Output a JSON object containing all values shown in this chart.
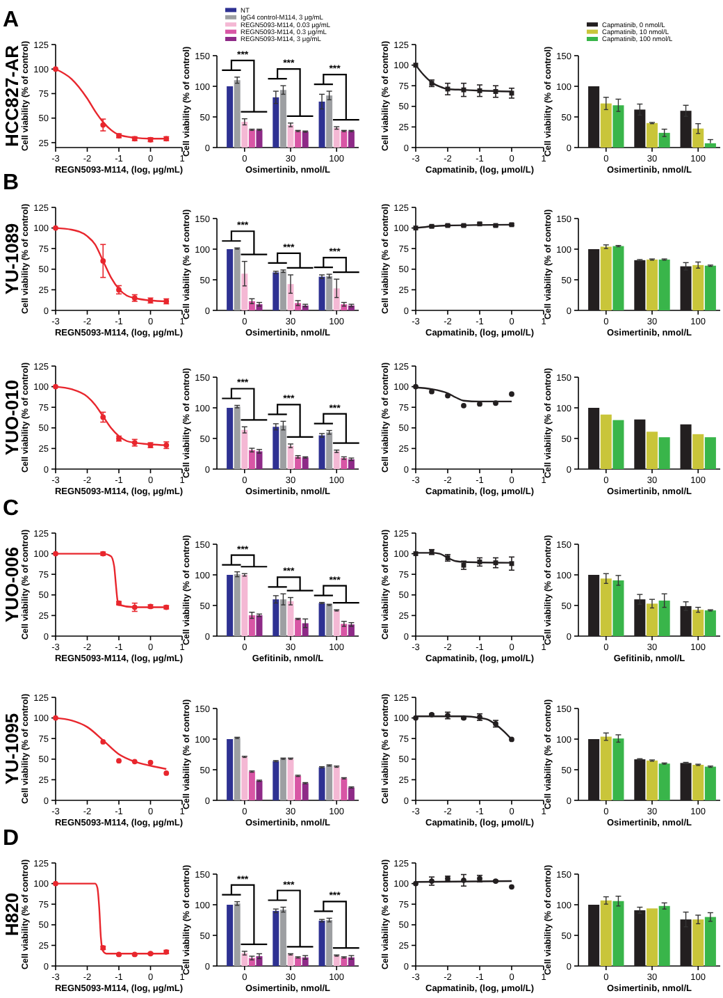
{
  "chart_data": [
    {
      "type": "line",
      "title": "HCC827-AR",
      "annotations": [
        "A"
      ],
      "xlabel": "REGN5093-M114, (log, μg/mL)",
      "ylabel": "Cell viability (% of control)",
      "xlim": [
        -3,
        1
      ],
      "xticks": [
        -3,
        -2,
        -1,
        0,
        1
      ],
      "ylim": [
        20,
        125
      ],
      "yticks": [
        25,
        50,
        75,
        100,
        125
      ],
      "series": [
        {
          "type": "line",
          "color": "#e8262d",
          "marker": "none",
          "x": [
            -3,
            -2.5,
            -2,
            -1.75,
            -1.5,
            -1.25,
            -1,
            -0.5,
            0,
            0.5
          ],
          "values": [
            100,
            90,
            70,
            57,
            46,
            38,
            33,
            30,
            29,
            29
          ]
        },
        {
          "type": "scatter",
          "color": "#e8262d",
          "marker": "circle",
          "x": [
            -3,
            -1.5,
            -1,
            -0.5,
            0,
            0.5
          ],
          "values": [
            100,
            43,
            32,
            29,
            28,
            29
          ],
          "errors": [
            null,
            6,
            2,
            2,
            2,
            2
          ]
        }
      ]
    },
    {
      "type": "bar",
      "categories": [
        "0",
        "30",
        "100"
      ],
      "xlabel": "Osimertinib, nmol/L",
      "ylabel": "Cell viability (% of control)",
      "ylim": [
        0,
        150
      ],
      "yticks": [
        0,
        50,
        100,
        150
      ],
      "legend": "top",
      "annotations": [
        "***",
        "***",
        "***"
      ],
      "series": [
        {
          "name": "NT",
          "color": "#2e3192",
          "values": [
            100,
            82,
            75
          ],
          "errors": [
            null,
            10,
            12
          ]
        },
        {
          "name": "IgG4 control-M114, 3 μg/mL",
          "color": "#9d9fa2",
          "values": [
            110,
            94,
            85
          ],
          "errors": [
            5,
            7,
            7
          ]
        },
        {
          "name": "REGN5093-M114, 0.03 μg/mL",
          "color": "#f4b8d4",
          "values": [
            42,
            37,
            32
          ],
          "errors": [
            5,
            3,
            2
          ]
        },
        {
          "name": "REGN5093-M114, 0.3 μg/mL",
          "color": "#d856a5",
          "values": [
            29,
            27,
            27
          ],
          "errors": [
            1,
            1,
            1
          ]
        },
        {
          "name": "REGN5093-M114, 3 μg/mL",
          "color": "#8e2a87",
          "values": [
            29,
            26,
            27
          ],
          "errors": [
            1,
            1,
            1
          ]
        }
      ]
    },
    {
      "type": "line",
      "xlabel": "Capmatinib, (log, μmol/L)",
      "ylabel": "Cell viability (% of control)",
      "xlim": [
        -3,
        1
      ],
      "xticks": [
        -3,
        -2,
        -1,
        0,
        1
      ],
      "ylim": [
        0,
        125
      ],
      "yticks": [
        0,
        25,
        50,
        75,
        100,
        125
      ],
      "series": [
        {
          "type": "line",
          "color": "#231f20",
          "marker": "none",
          "x": [
            -3,
            -2.75,
            -2.5,
            -2.25,
            -2,
            -1.5,
            -1,
            0
          ],
          "values": [
            100,
            88,
            79,
            74,
            71,
            70,
            69,
            68
          ]
        },
        {
          "type": "scatter",
          "color": "#231f20",
          "marker": "square",
          "x": [
            -3,
            -2.5,
            -2,
            -1.5,
            -1,
            -0.5,
            0
          ],
          "values": [
            100,
            78,
            71,
            70,
            69,
            68,
            66
          ],
          "errors": [
            null,
            4,
            7,
            8,
            7,
            7,
            6
          ]
        }
      ]
    },
    {
      "type": "bar",
      "categories": [
        "0",
        "30",
        "100"
      ],
      "xlabel": "Osimertinib, nmol/L",
      "ylabel": "Cell viability (% of control)",
      "ylim": [
        0,
        150
      ],
      "yticks": [
        0,
        50,
        100,
        150
      ],
      "legend": "top",
      "series": [
        {
          "name": "Capmatinib, 0 nmol/L",
          "color": "#231f20",
          "values": [
            100,
            62,
            60
          ],
          "errors": [
            null,
            9,
            9
          ]
        },
        {
          "name": "Capmatinib, 10 nmol/L",
          "color": "#c9c53a",
          "values": [
            72,
            40,
            31
          ],
          "errors": [
            10,
            1,
            8
          ]
        },
        {
          "name": "Capmatinib, 100 nmol/L",
          "color": "#39b54a",
          "values": [
            69,
            24,
            7
          ],
          "errors": [
            10,
            6,
            [
              7,
              13
            ]
          ]
        }
      ]
    },
    {
      "type": "line",
      "title": "YU-1089",
      "annotations": [
        "B"
      ],
      "xlabel": "REGN5093-M114, (log, μg/mL)",
      "ylabel": "Cell viability (% of control)",
      "xlim": [
        -3,
        1
      ],
      "xticks": [
        -3,
        -2,
        -1,
        0,
        1
      ],
      "ylim": [
        0,
        125
      ],
      "yticks": [
        0,
        25,
        50,
        75,
        100,
        125
      ],
      "series": [
        {
          "type": "line",
          "color": "#e8262d",
          "marker": "none",
          "x": [
            -3,
            -2.5,
            -2,
            -1.75,
            -1.5,
            -1.25,
            -1,
            -0.75,
            -0.5,
            0,
            0.5
          ],
          "values": [
            100,
            98,
            90,
            80,
            60,
            40,
            26,
            18,
            15,
            12,
            11
          ]
        },
        {
          "type": "scatter",
          "color": "#e8262d",
          "marker": "circle",
          "x": [
            -3,
            -1.5,
            -1,
            -0.5,
            0,
            0.5
          ],
          "values": [
            100,
            60,
            25,
            15,
            12,
            11
          ],
          "errors": [
            null,
            20,
            5,
            4,
            3,
            3
          ]
        }
      ]
    },
    {
      "type": "bar",
      "categories": [
        "0",
        "30",
        "100"
      ],
      "xlabel": "Osimertinib, nmol/L",
      "ylabel": "Cell viability (% of control)",
      "ylim": [
        0,
        150
      ],
      "yticks": [
        0,
        50,
        100,
        150
      ],
      "annotations": [
        "***",
        "***",
        "***"
      ],
      "series": [
        {
          "color": "#2e3192",
          "values": [
            100,
            62,
            55
          ],
          "errors": [
            null,
            2,
            3
          ]
        },
        {
          "color": "#9d9fa2",
          "values": [
            101,
            64,
            56
          ],
          "errors": [
            1,
            2,
            3
          ]
        },
        {
          "color": "#f4b8d4",
          "values": [
            60,
            43,
            36
          ],
          "errors": [
            20,
            15,
            15
          ]
        },
        {
          "color": "#d856a5",
          "values": [
            15,
            12,
            10
          ],
          "errors": [
            4,
            4,
            3
          ]
        },
        {
          "color": "#8e2a87",
          "values": [
            10,
            8,
            8
          ],
          "errors": [
            3,
            2,
            2
          ]
        }
      ]
    },
    {
      "type": "line",
      "xlabel": "Capmatinib, (log, μmol/L)",
      "ylabel": "Cell viability (% of control)",
      "xlim": [
        -3,
        1
      ],
      "xticks": [
        -3,
        -2,
        -1,
        0,
        1
      ],
      "ylim": [
        0,
        125
      ],
      "yticks": [
        0,
        25,
        50,
        75,
        100,
        125
      ],
      "series": [
        {
          "type": "line",
          "color": "#231f20",
          "marker": "none",
          "x": [
            -3,
            -2.5,
            -2,
            0
          ],
          "values": [
            100,
            102,
            103,
            104
          ]
        },
        {
          "type": "scatter",
          "color": "#231f20",
          "marker": "square",
          "x": [
            -3,
            -2.5,
            -2,
            -1.5,
            -1,
            -0.5,
            0
          ],
          "values": [
            100,
            102,
            103,
            103,
            105,
            103,
            104
          ],
          "errors": [
            null,
            1,
            1,
            1,
            1,
            1,
            1
          ]
        }
      ]
    },
    {
      "type": "bar",
      "categories": [
        "0",
        "30",
        "100"
      ],
      "xlabel": "Osimertinib, nmol/L",
      "ylabel": "Cell viability (% of control)",
      "ylim": [
        0,
        150
      ],
      "yticks": [
        0,
        50,
        100,
        150
      ],
      "series": [
        {
          "color": "#231f20",
          "values": [
            100,
            82,
            72
          ],
          "errors": [
            null,
            1,
            6
          ]
        },
        {
          "color": "#c9c53a",
          "values": [
            104,
            83,
            74
          ],
          "errors": [
            3,
            1,
            5
          ]
        },
        {
          "color": "#39b54a",
          "values": [
            105,
            83,
            73
          ],
          "errors": [
            1,
            1,
            1
          ]
        }
      ]
    },
    {
      "type": "line",
      "title": "YUO-010",
      "xlabel": "REGN5093-M114, (log, μg/mL)",
      "ylabel": "Cell viability (% of control)",
      "xlim": [
        -3,
        1
      ],
      "xticks": [
        -3,
        -2,
        -1,
        0,
        1
      ],
      "ylim": [
        0,
        125
      ],
      "yticks": [
        0,
        25,
        50,
        75,
        100,
        125
      ],
      "series": [
        {
          "type": "line",
          "color": "#e8262d",
          "marker": "none",
          "x": [
            -3,
            -2.5,
            -2,
            -1.75,
            -1.5,
            -1.25,
            -1,
            -0.75,
            -0.5,
            0,
            0.5
          ],
          "values": [
            100,
            97,
            88,
            78,
            64,
            50,
            40,
            34,
            32,
            30,
            29
          ]
        },
        {
          "type": "scatter",
          "color": "#e8262d",
          "marker": "circle",
          "x": [
            -3,
            -1.5,
            -1,
            -0.5,
            0,
            0.5
          ],
          "values": [
            100,
            63,
            37,
            32,
            29,
            29
          ],
          "errors": [
            null,
            6,
            3,
            4,
            3,
            4
          ]
        }
      ]
    },
    {
      "type": "bar",
      "categories": [
        "0",
        "30",
        "100"
      ],
      "xlabel": "Osimertinib, nmol/L",
      "ylabel": "Cell viability (% of control)",
      "ylim": [
        0,
        150
      ],
      "yticks": [
        0,
        50,
        100,
        150
      ],
      "annotations": [
        "***",
        "***",
        "***"
      ],
      "series": [
        {
          "color": "#2e3192",
          "values": [
            100,
            69,
            55
          ],
          "errors": [
            null,
            5,
            3
          ]
        },
        {
          "color": "#9d9fa2",
          "values": [
            102,
            71,
            60
          ],
          "errors": [
            2,
            7,
            3
          ]
        },
        {
          "color": "#f4b8d4",
          "values": [
            64,
            38,
            29
          ],
          "errors": [
            5,
            3,
            2
          ]
        },
        {
          "color": "#d856a5",
          "values": [
            31,
            20,
            18
          ],
          "errors": [
            3,
            2,
            2
          ]
        },
        {
          "color": "#8e2a87",
          "values": [
            29,
            19,
            16
          ],
          "errors": [
            3,
            1,
            2
          ]
        }
      ]
    },
    {
      "type": "line",
      "xlabel": "Capmatinib, (log, μmol/L)",
      "ylabel": "Cell viability (% of control)",
      "xlim": [
        -3,
        1
      ],
      "xticks": [
        -3,
        -2,
        -1,
        0,
        1
      ],
      "ylim": [
        0,
        125
      ],
      "yticks": [
        0,
        25,
        50,
        75,
        100,
        125
      ],
      "series": [
        {
          "type": "line",
          "color": "#231f20",
          "marker": "none",
          "x": [
            -3,
            -2.5,
            -2,
            -1.75,
            -1.5,
            -1,
            0
          ],
          "values": [
            99,
            97,
            92,
            87,
            83,
            82,
            82
          ]
        },
        {
          "type": "scatter",
          "color": "#231f20",
          "marker": "circle",
          "x": [
            -3,
            -2.5,
            -2,
            -1.5,
            -1,
            -0.5,
            0
          ],
          "values": [
            100,
            94,
            89,
            77,
            79,
            80,
            91
          ]
        }
      ]
    },
    {
      "type": "bar",
      "categories": [
        "0",
        "30",
        "100"
      ],
      "xlabel": "Osimertinib, nmol/L",
      "ylabel": "Cell viability (% of control)",
      "ylim": [
        0,
        150
      ],
      "yticks": [
        0,
        50,
        100,
        150
      ],
      "series": [
        {
          "color": "#231f20",
          "values": [
            100,
            81,
            73
          ]
        },
        {
          "color": "#c9c53a",
          "values": [
            89,
            61,
            57
          ]
        },
        {
          "color": "#39b54a",
          "values": [
            80,
            52,
            52
          ]
        }
      ]
    },
    {
      "type": "line",
      "title": "YUO-006",
      "annotations": [
        "C"
      ],
      "xlabel": "REGN5093-M114, (log, μg/mL)",
      "ylabel": "Cell viability (% of control)",
      "xlim": [
        -3,
        1
      ],
      "xticks": [
        -3,
        -2,
        -1,
        0,
        1
      ],
      "ylim": [
        0,
        125
      ],
      "yticks": [
        0,
        25,
        50,
        75,
        100,
        125
      ],
      "series": [
        {
          "type": "line",
          "color": "#e8262d",
          "marker": "none",
          "x": [
            -3,
            -1.5,
            -1.25,
            -1.15,
            -1.1,
            -1.05,
            -1,
            -0.5,
            0.5
          ],
          "values": [
            100,
            100,
            97,
            85,
            65,
            45,
            38,
            35,
            35
          ]
        },
        {
          "type": "scatter",
          "color": "#e8262d",
          "marker": "circle",
          "x": [
            -3,
            -1.5,
            -1,
            -0.5,
            0,
            0.5
          ],
          "values": [
            100,
            100,
            40,
            35,
            36,
            35
          ],
          "errors": [
            null,
            2,
            2,
            5,
            2,
            2
          ]
        }
      ]
    },
    {
      "type": "bar",
      "categories": [
        "0",
        "30",
        "100"
      ],
      "xlabel": "Gefitinib, nmol/L",
      "ylabel": "Cell viability (% of control)",
      "ylim": [
        0,
        150
      ],
      "yticks": [
        0,
        50,
        100,
        150
      ],
      "annotations": [
        "***",
        "***",
        "***"
      ],
      "series": [
        {
          "color": "#2e3192",
          "values": [
            100,
            60,
            54
          ],
          "errors": [
            null,
            6,
            1
          ]
        },
        {
          "color": "#9d9fa2",
          "values": [
            101,
            60,
            51
          ],
          "errors": [
            4,
            9,
            1
          ]
        },
        {
          "color": "#f4b8d4",
          "values": [
            100,
            57,
            42
          ],
          "errors": [
            2,
            6,
            1
          ]
        },
        {
          "color": "#d856a5",
          "values": [
            34,
            28,
            20
          ],
          "errors": [
            5,
            1,
            4
          ]
        },
        {
          "color": "#8e2a87",
          "values": [
            34,
            21,
            19
          ],
          "errors": [
            2,
            7,
            3
          ]
        }
      ]
    },
    {
      "type": "line",
      "xlabel": "Capmatinib, (log, μmol/L)",
      "ylabel": "Cell viability (% of control)",
      "xlim": [
        -3,
        1
      ],
      "xticks": [
        -3,
        -2,
        -1,
        0,
        1
      ],
      "ylim": [
        0,
        125
      ],
      "yticks": [
        0,
        25,
        50,
        75,
        100,
        125
      ],
      "series": [
        {
          "type": "line",
          "color": "#231f20",
          "marker": "none",
          "x": [
            -3,
            -2.5,
            -2.25,
            -2,
            -1.75,
            -1.5,
            0
          ],
          "values": [
            101,
            101,
            100,
            95,
            91,
            90,
            89
          ]
        },
        {
          "type": "scatter",
          "color": "#231f20",
          "marker": "square",
          "x": [
            -3,
            -2.5,
            -2,
            -1.5,
            -1,
            -0.5,
            0
          ],
          "values": [
            100,
            102,
            95,
            86,
            90,
            89,
            88
          ],
          "errors": [
            null,
            3,
            4,
            5,
            5,
            6,
            8
          ]
        }
      ]
    },
    {
      "type": "bar",
      "categories": [
        "0",
        "30",
        "100"
      ],
      "xlabel": "Gefitinib, nmol/L",
      "ylabel": "Cell viability (% of control)",
      "ylim": [
        0,
        150
      ],
      "yticks": [
        0,
        50,
        100,
        150
      ],
      "series": [
        {
          "color": "#231f20",
          "values": [
            100,
            60,
            49
          ],
          "errors": [
            null,
            8,
            7
          ]
        },
        {
          "color": "#c9c53a",
          "values": [
            94,
            53,
            43
          ],
          "errors": [
            8,
            7,
            4
          ]
        },
        {
          "color": "#39b54a",
          "values": [
            91,
            58,
            42
          ],
          "errors": [
            8,
            11,
            1
          ]
        }
      ]
    },
    {
      "type": "line",
      "title": "YU-1095",
      "xlabel": "REGN5093-M114, (log, μg/mL)",
      "ylabel": "Cell viability (% of control)",
      "xlim": [
        -3,
        1
      ],
      "xticks": [
        -3,
        -2,
        -1,
        0,
        1
      ],
      "ylim": [
        0,
        125
      ],
      "yticks": [
        0,
        25,
        50,
        75,
        100,
        125
      ],
      "series": [
        {
          "type": "line",
          "color": "#e8262d",
          "marker": "none",
          "x": [
            -3,
            -2.5,
            -2,
            -1.5,
            -1,
            -0.5,
            0,
            0.5
          ],
          "values": [
            100,
            97,
            89,
            73,
            56,
            47,
            42,
            38
          ]
        },
        {
          "type": "scatter",
          "color": "#e8262d",
          "marker": "circle",
          "x": [
            -3,
            -1.5,
            -1,
            -0.5,
            0,
            0.5
          ],
          "values": [
            100,
            71,
            48,
            47,
            46,
            33
          ]
        }
      ]
    },
    {
      "type": "bar",
      "categories": [
        "0",
        "30",
        "100"
      ],
      "xlabel": "Osimertinib, nmol/L",
      "ylabel": "Cell viability (% of control)",
      "ylim": [
        0,
        150
      ],
      "yticks": [
        0,
        50,
        100,
        150
      ],
      "series": [
        {
          "color": "#2e3192",
          "values": [
            100,
            64,
            54
          ],
          "errors": [
            null,
            1,
            1
          ]
        },
        {
          "color": "#9d9fa2",
          "values": [
            102,
            68,
            57
          ],
          "errors": [
            1,
            1,
            1
          ]
        },
        {
          "color": "#f4b8d4",
          "values": [
            71,
            68,
            55
          ],
          "errors": [
            1,
            1,
            1
          ]
        },
        {
          "color": "#d856a5",
          "values": [
            47,
            40,
            36
          ],
          "errors": [
            1,
            1,
            1
          ]
        },
        {
          "color": "#8e2a87",
          "values": [
            32,
            28,
            21
          ],
          "errors": [
            1,
            1,
            1
          ]
        }
      ]
    },
    {
      "type": "line",
      "xlabel": "Capmatinib, (log, μmol/L)",
      "ylabel": "Cell viability (% of control)",
      "xlim": [
        -3,
        1
      ],
      "xticks": [
        -3,
        -2,
        -1,
        0,
        1
      ],
      "ylim": [
        0,
        125
      ],
      "yticks": [
        0,
        25,
        50,
        75,
        100,
        125
      ],
      "series": [
        {
          "type": "line",
          "color": "#231f20",
          "marker": "none",
          "x": [
            -3,
            -2,
            -1.5,
            -1,
            -0.75,
            -0.5,
            -0.25,
            0
          ],
          "values": [
            102,
            102,
            102,
            100,
            98,
            92,
            84,
            74
          ]
        },
        {
          "type": "scatter",
          "color": "#231f20",
          "marker": "circle",
          "x": [
            -3,
            -2.5,
            -2,
            -1.5,
            -1,
            -0.5,
            0
          ],
          "values": [
            100,
            104,
            103,
            100,
            101,
            93,
            74
          ],
          "errors": [
            null,
            1,
            4,
            1,
            4,
            4,
            null
          ]
        }
      ]
    },
    {
      "type": "bar",
      "categories": [
        "0",
        "30",
        "100"
      ],
      "xlabel": "Osimertinib, nmol/L",
      "ylabel": "Cell viability (% of control)",
      "ylim": [
        0,
        150
      ],
      "yticks": [
        0,
        50,
        100,
        150
      ],
      "series": [
        {
          "color": "#231f20",
          "values": [
            100,
            67,
            61
          ],
          "errors": [
            null,
            1,
            1
          ]
        },
        {
          "color": "#c9c53a",
          "values": [
            104,
            65,
            58
          ],
          "errors": [
            6,
            1,
            1
          ]
        },
        {
          "color": "#39b54a",
          "values": [
            101,
            60,
            55
          ],
          "errors": [
            6,
            1,
            1
          ]
        }
      ]
    },
    {
      "type": "line",
      "title": "H820",
      "annotations": [
        "D"
      ],
      "xlabel": "REGN5093-M114, (log, μg/mL)",
      "ylabel": "Cell viability (% of control)",
      "xlim": [
        -3,
        1
      ],
      "xticks": [
        -3,
        -2,
        -1,
        0,
        1
      ],
      "ylim": [
        0,
        125
      ],
      "yticks": [
        0,
        25,
        50,
        75,
        100,
        125
      ],
      "series": [
        {
          "type": "line",
          "color": "#e8262d",
          "marker": "none",
          "x": [
            -3,
            -1.75,
            -1.68,
            -1.62,
            -1.57,
            -1.5,
            -1.4,
            0.5
          ],
          "values": [
            100,
            100,
            95,
            70,
            35,
            18,
            15,
            15
          ]
        },
        {
          "type": "scatter",
          "color": "#e8262d",
          "marker": "circle",
          "x": [
            -3,
            -1.5,
            -1,
            -0.5,
            0,
            0.5
          ],
          "values": [
            100,
            22,
            14,
            14,
            15,
            17
          ],
          "errors": [
            null,
            2,
            1,
            1,
            1,
            2
          ]
        }
      ]
    },
    {
      "type": "bar",
      "categories": [
        "0",
        "30",
        "100"
      ],
      "xlabel": "Osimertinib, nmol/L",
      "ylabel": "Cell viability (% of control)",
      "ylim": [
        0,
        150
      ],
      "yticks": [
        0,
        50,
        100,
        150
      ],
      "annotations": [
        "***",
        "***",
        "***"
      ],
      "series": [
        {
          "color": "#2e3192",
          "values": [
            100,
            90,
            74
          ],
          "errors": [
            null,
            3,
            2
          ]
        },
        {
          "color": "#9d9fa2",
          "values": [
            102,
            92,
            75
          ],
          "errors": [
            3,
            4,
            3
          ]
        },
        {
          "color": "#f4b8d4",
          "values": [
            21,
            19,
            17
          ],
          "errors": [
            3,
            1,
            1
          ]
        },
        {
          "color": "#d856a5",
          "values": [
            13,
            14,
            14
          ],
          "errors": [
            3,
            1,
            1
          ]
        },
        {
          "color": "#8e2a87",
          "values": [
            16,
            14,
            14
          ],
          "errors": [
            4,
            3,
            3
          ]
        }
      ]
    },
    {
      "type": "line",
      "xlabel": "Capmatinib, (log, μmol/L)",
      "ylabel": "Cell viability (% of control)",
      "xlim": [
        -3,
        1
      ],
      "xticks": [
        -3,
        -2,
        -1,
        0,
        1
      ],
      "ylim": [
        0,
        125
      ],
      "yticks": [
        0,
        25,
        50,
        75,
        100,
        125
      ],
      "series": [
        {
          "type": "line",
          "color": "#231f20",
          "marker": "none",
          "x": [
            -3,
            0
          ],
          "values": [
            102,
            103
          ]
        },
        {
          "type": "scatter",
          "color": "#231f20",
          "marker": "circle",
          "x": [
            -3,
            -2.5,
            -2,
            -1.5,
            -1,
            -0.5,
            0
          ],
          "values": [
            100,
            103,
            106,
            104,
            106,
            103,
            96
          ],
          "errors": [
            null,
            5,
            3,
            7,
            4,
            1,
            null
          ]
        }
      ]
    },
    {
      "type": "bar",
      "categories": [
        "0",
        "30",
        "100"
      ],
      "xlabel": "Osimertinib, nmol/L",
      "ylabel": "Cell viability (% of control)",
      "ylim": [
        0,
        150
      ],
      "yticks": [
        0,
        50,
        100,
        150
      ],
      "series": [
        {
          "color": "#231f20",
          "values": [
            100,
            91,
            76
          ],
          "errors": [
            null,
            5,
            12
          ]
        },
        {
          "color": "#c9c53a",
          "values": [
            107,
            94,
            76
          ],
          "errors": [
            6,
            null,
            7
          ]
        },
        {
          "color": "#39b54a",
          "values": [
            106,
            98,
            80
          ],
          "errors": [
            8,
            5,
            7
          ]
        }
      ]
    }
  ]
}
